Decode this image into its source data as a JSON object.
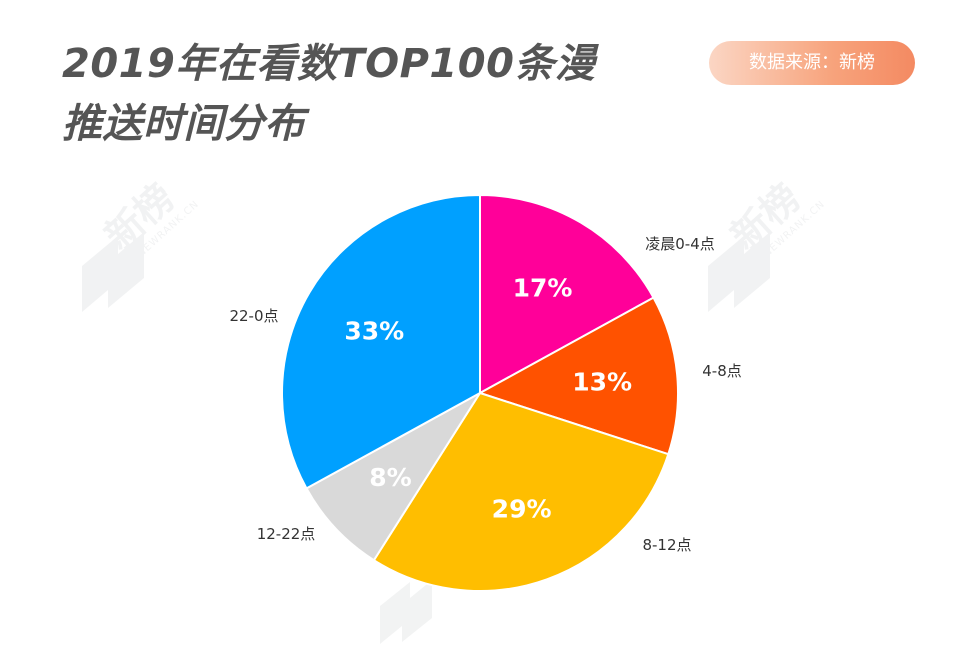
{
  "header": {
    "title_line1": "2019年在看数TOP100条漫",
    "title_line2": "推送时间分布",
    "source": "数据来源：新榜"
  },
  "watermark": {
    "text": "新榜",
    "subtext": "NEWRANK.CN"
  },
  "chart_data": {
    "type": "pie",
    "title": "2019年在看数TOP100条漫推送时间分布",
    "slices": [
      {
        "label": "凌晨0-4点",
        "value": 17,
        "display": "17%",
        "color": "#FF0099"
      },
      {
        "label": "4-8点",
        "value": 13,
        "display": "13%",
        "color": "#FF5200"
      },
      {
        "label": "8-12点",
        "value": 29,
        "display": "29%",
        "color": "#FFBE00"
      },
      {
        "label": "12-22点",
        "value": 8,
        "display": "8%",
        "color": "#D9D9D9"
      },
      {
        "label": "22-0点",
        "value": 33,
        "display": "33%",
        "color": "#00A0FF"
      }
    ],
    "start_angle_deg": 0,
    "direction": "clockwise",
    "legend": "none",
    "label_placement": "outside"
  }
}
